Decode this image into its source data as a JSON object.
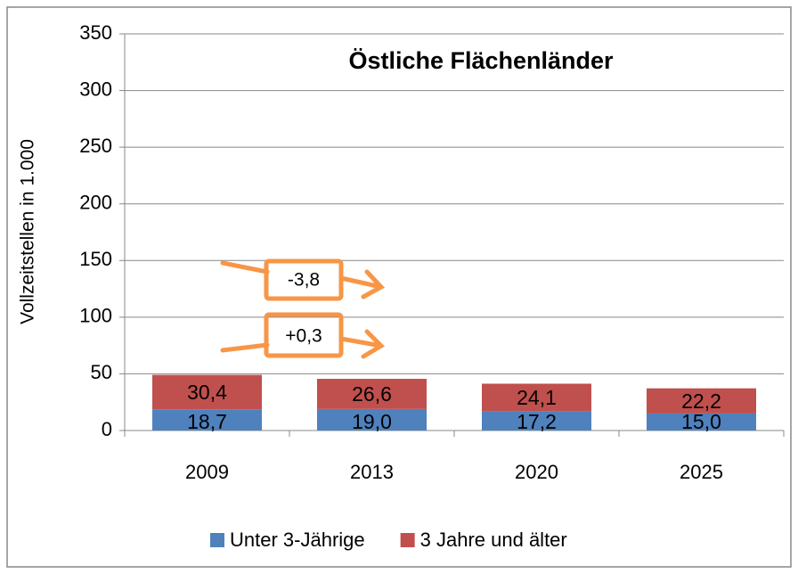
{
  "chart_data": {
    "type": "stacked_bar",
    "title": "Östliche Flächenländer",
    "y_label": "Vollzeitstellen in 1.000",
    "categories": [
      "2009",
      "2013",
      "2020",
      "2025"
    ],
    "series": [
      {
        "name": "Unter 3-Jährige",
        "color": "#4f81bd",
        "values": [
          18.7,
          19.0,
          17.2,
          15.0
        ],
        "value_labels": [
          "18,7",
          "19,0",
          "17,2",
          "15,0"
        ]
      },
      {
        "name": "3 Jahre und älter",
        "color": "#c0504d",
        "values": [
          30.4,
          26.6,
          24.1,
          22.2
        ],
        "value_labels": [
          "30,4",
          "26,6",
          "24,1",
          "22,2"
        ]
      }
    ],
    "ylim": [
      0,
      350
    ],
    "yticks": [
      0,
      50,
      100,
      150,
      200,
      250,
      300,
      350
    ],
    "grid": true,
    "annotations": [
      "-3,8",
      "+0,3"
    ]
  }
}
